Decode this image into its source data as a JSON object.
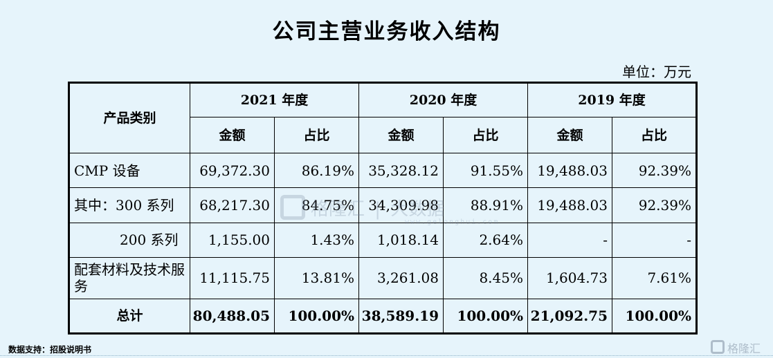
{
  "title": "公司主营业务收入结构",
  "unit": "单位：万元",
  "table": {
    "category_header": "产品类别",
    "years": [
      "2021 年度",
      "2020 年度",
      "2019 年度"
    ],
    "sub_headers": {
      "amount": "金额",
      "ratio": "占比"
    },
    "rows": [
      {
        "label": "CMP 设备",
        "cells": [
          "69,372.30",
          "86.19%",
          "35,328.12",
          "91.55%",
          "19,488.03",
          "92.39%"
        ]
      },
      {
        "label": "其中：300 系列",
        "cells": [
          "68,217.30",
          "84.75%",
          "34,309.98",
          "88.91%",
          "19,488.03",
          "92.39%"
        ]
      },
      {
        "label": "200 系列",
        "cells": [
          "1,155.00",
          "1.43%",
          "1,018.14",
          "2.64%",
          "-",
          "-"
        ]
      },
      {
        "label": "配套材料及技术服务",
        "cells": [
          "11,115.75",
          "13.81%",
          "3,261.08",
          "8.45%",
          "1,604.73",
          "7.61%"
        ]
      },
      {
        "label": "总计",
        "cells": [
          "80,488.05",
          "100.00%",
          "38,589.19",
          "100.00%",
          "21,092.75",
          "100.00%"
        ]
      }
    ]
  },
  "watermark": {
    "brand": "格隆汇",
    "product": "大数据",
    "url": "www.gelonghui.com"
  },
  "source": "数据支持：招股说明书",
  "corner_brand": "格隆汇"
}
